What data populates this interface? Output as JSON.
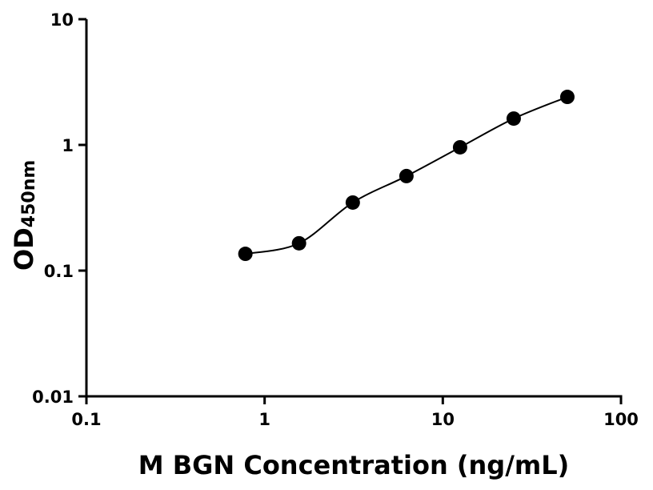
{
  "chart_data": {
    "type": "scatter",
    "title": "",
    "xlabel": "M BGN Concentration (ng/mL)",
    "ylabel": "OD",
    "ylabel_subscript": "450nm",
    "xscale": "log",
    "yscale": "log",
    "xlim": [
      0.1,
      100
    ],
    "ylim": [
      0.01,
      10
    ],
    "xticks": [
      "0.1",
      "1",
      "10",
      "100"
    ],
    "yticks": [
      "0.01",
      "0.1",
      "1",
      "10"
    ],
    "grid": false,
    "fit_curve": true,
    "marker_color": "#000000",
    "series": [
      {
        "x": [
          0.78,
          1.56,
          3.125,
          6.25,
          12.5,
          25,
          50
        ],
        "y": [
          0.136,
          0.165,
          0.348,
          0.565,
          0.957,
          1.62,
          2.41
        ]
      }
    ]
  }
}
